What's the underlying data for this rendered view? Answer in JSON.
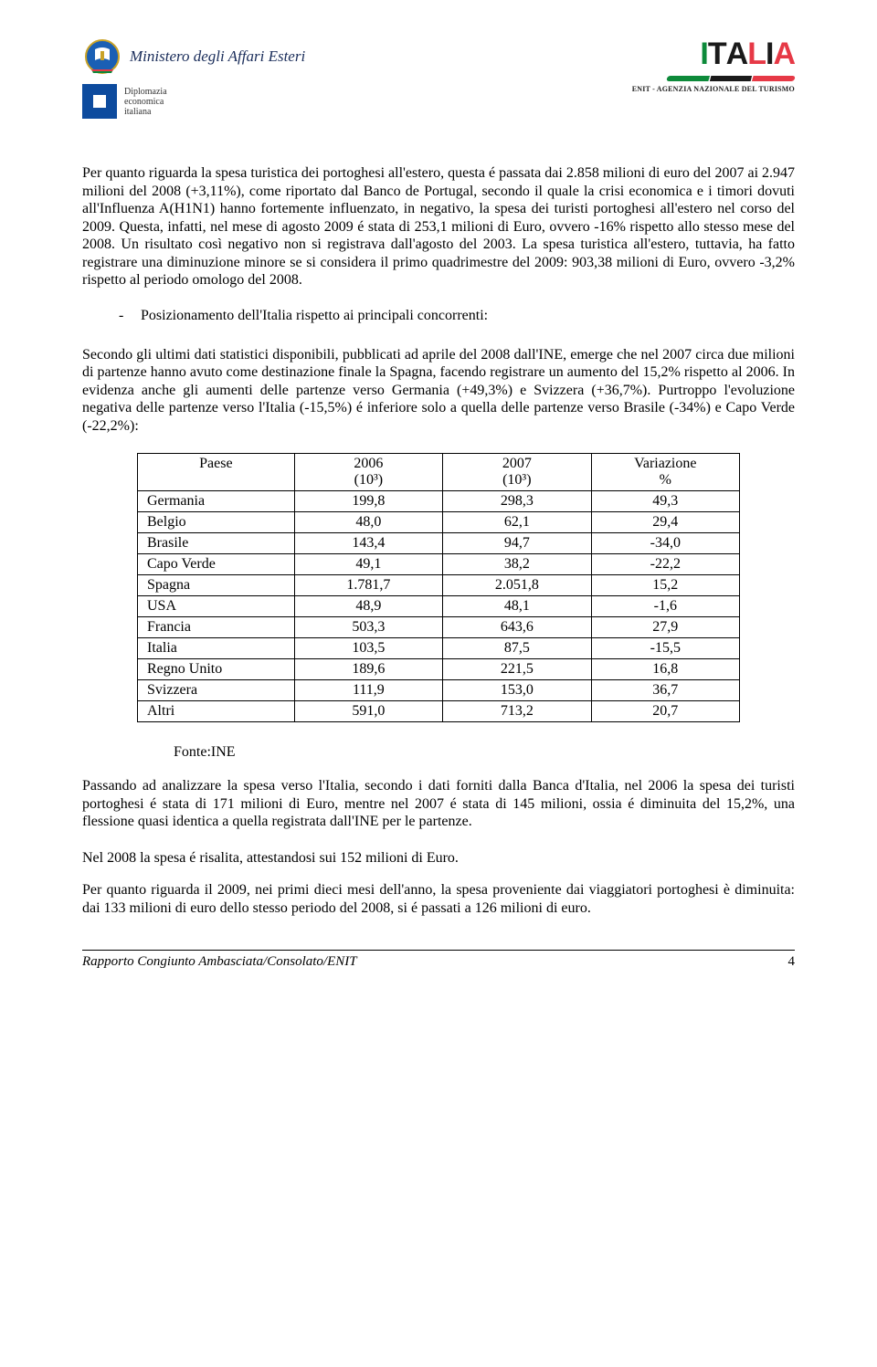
{
  "header": {
    "ministero": "Ministero degli Affari Esteri",
    "diplomazia_lines": [
      "Diplomazia",
      "economica",
      "italiana"
    ],
    "italia": "ITALIA",
    "enit": "ENIT - AGENZIA NAZIONALE DEL TURISMO",
    "colors": {
      "green": "#0d8a3a",
      "red": "#e63946",
      "black": "#1a1a1a",
      "blue": "#0d4b9e",
      "emblem_blue": "#1a2d5a"
    }
  },
  "paragraph1": "Per quanto riguarda la spesa turistica dei portoghesi all'estero, questa é passata dai 2.858 milioni di euro del 2007 ai 2.947 milioni del 2008 (+3,11%), come riportato dal Banco de Portugal, secondo il quale la crisi economica e i timori dovuti all'Influenza A(H1N1) hanno fortemente influenzato, in negativo, la spesa dei turisti portoghesi all'estero nel corso del 2009. Questa, infatti, nel mese di agosto 2009 é stata di 253,1 milioni di Euro, ovvero -16% rispetto allo stesso mese del 2008. Un risultato così negativo non si registrava dall'agosto del 2003. La spesa turistica all'estero, tuttavia, ha fatto registrare una diminuzione minore se si considera il primo quadrimestre del 2009: 903,38 milioni di Euro, ovvero -3,2% rispetto al periodo omologo del 2008.",
  "bullet": "Posizionamento dell'Italia rispetto ai principali concorrenti:",
  "paragraph2": "Secondo gli ultimi dati statistici disponibili, pubblicati ad aprile del 2008 dall'INE, emerge che nel 2007 circa due milioni di partenze hanno avuto come destinazione finale la Spagna, facendo registrare un aumento del 15,2% rispetto al 2006. In evidenza anche gli aumenti delle partenze verso Germania (+49,3%) e Svizzera (+36,7%). Purtroppo l'evoluzione negativa delle partenze verso l'Italia (-15,5%) é inferiore solo a quella delle partenze verso Brasile (-34%) e Capo Verde (-22,2%):",
  "table": {
    "headers": {
      "col0": "Paese",
      "col1_top": "2006",
      "col1_bot": "(10³)",
      "col2_top": "2007",
      "col2_bot": "(10³)",
      "col3_top": "Variazione",
      "col3_bot": "%"
    },
    "rows": [
      {
        "label": "Germania",
        "v1": "199,8",
        "v2": "298,3",
        "v3": "49,3"
      },
      {
        "label": "Belgio",
        "v1": "48,0",
        "v2": "62,1",
        "v3": "29,4"
      },
      {
        "label": "Brasile",
        "v1": "143,4",
        "v2": "94,7",
        "v3": "-34,0"
      },
      {
        "label": "Capo Verde",
        "v1": "49,1",
        "v2": "38,2",
        "v3": "-22,2"
      },
      {
        "label": "Spagna",
        "v1": "1.781,7",
        "v2": "2.051,8",
        "v3": "15,2"
      },
      {
        "label": "USA",
        "v1": "48,9",
        "v2": "48,1",
        "v3": "-1,6"
      },
      {
        "label": "Francia",
        "v1": "503,3",
        "v2": "643,6",
        "v3": "27,9"
      },
      {
        "label": "Italia",
        "v1": "103,5",
        "v2": "87,5",
        "v3": "-15,5"
      },
      {
        "label": "Regno Unito",
        "v1": "189,6",
        "v2": "221,5",
        "v3": "16,8"
      },
      {
        "label": "Svizzera",
        "v1": "111,9",
        "v2": "153,0",
        "v3": "36,7"
      },
      {
        "label": "Altri",
        "v1": "591,0",
        "v2": "713,2",
        "v3": "20,7"
      }
    ]
  },
  "fonte": "Fonte:INE",
  "paragraph3": "Passando ad analizzare la spesa verso l'Italia, secondo i dati forniti dalla Banca d'Italia, nel 2006 la spesa dei turisti portoghesi é stata di 171 milioni di Euro, mentre nel 2007 é stata di 145 milioni, ossia é diminuita del 15,2%, una flessione quasi identica a quella registrata dall'INE per le partenze.",
  "paragraph4": "Nel 2008 la spesa é risalita, attestandosi sui 152 milioni di Euro.",
  "paragraph5": "Per quanto riguarda il 2009, nei primi dieci mesi dell'anno, la spesa proveniente dai viaggiatori portoghesi è diminuita: dai 133 milioni di euro dello stesso periodo del 2008, si é passati a 126 milioni di euro.",
  "footer": {
    "title": "Rapporto Congiunto Ambasciata/Consolato/ENIT",
    "page": "4"
  }
}
